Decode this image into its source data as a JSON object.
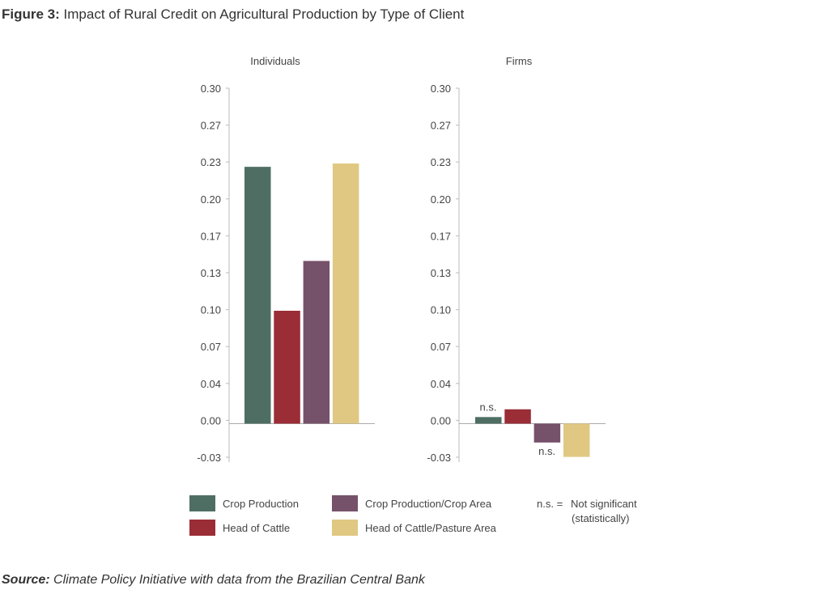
{
  "figure": {
    "label": "Figure 3:",
    "title": "Impact of Rural Credit on Agricultural Production by Type of Client"
  },
  "source": {
    "label": "Source:",
    "text": "Climate Policy Initiative with data from the Brazilian Central Bank"
  },
  "colors": {
    "Crop Production": "#4e6e63",
    "Head of Cattle": "#9a2d36",
    "Crop Production/Crop Area": "#76516a",
    "Head of Cattle/Pasture Area": "#e0c882"
  },
  "legend": {
    "items": [
      "Crop Production",
      "Head of Cattle",
      "Crop Production/Crop Area",
      "Head of Cattle/Pasture Area"
    ],
    "note_key": "n.s. =",
    "note_line1": "Not significant",
    "note_line2": "(statistically)"
  },
  "chart_data": [
    {
      "type": "bar",
      "title": "Individuals",
      "categories": [
        "Crop Production",
        "Head of Cattle",
        "Crop Production/Crop Area",
        "Head of Cattle/Pasture Area"
      ],
      "values": [
        0.229,
        0.099,
        0.144,
        0.232
      ],
      "annotations": [
        "",
        "",
        "",
        ""
      ],
      "yticks": [
        "0.30",
        "0.27",
        "0.23",
        "0.20",
        "0.17",
        "0.13",
        "0.10",
        "0.07",
        "0.04",
        "0.00",
        "-0.03"
      ],
      "ylim": [
        -0.0333,
        0.3
      ],
      "grid": false
    },
    {
      "type": "bar",
      "title": "Firms",
      "categories": [
        "Crop Production",
        "Head of Cattle",
        "Crop Production/Crop Area",
        "Head of Cattle/Pasture Area"
      ],
      "values": [
        0.003,
        0.01,
        -0.02,
        -0.033
      ],
      "annotations": [
        "n.s.",
        "",
        "n.s.",
        ""
      ],
      "yticks": [
        "0.30",
        "0.27",
        "0.23",
        "0.20",
        "0.17",
        "0.13",
        "0.10",
        "0.07",
        "0.04",
        "0.00",
        "-0.03"
      ],
      "ylim": [
        -0.0333,
        0.3
      ],
      "grid": false
    }
  ]
}
